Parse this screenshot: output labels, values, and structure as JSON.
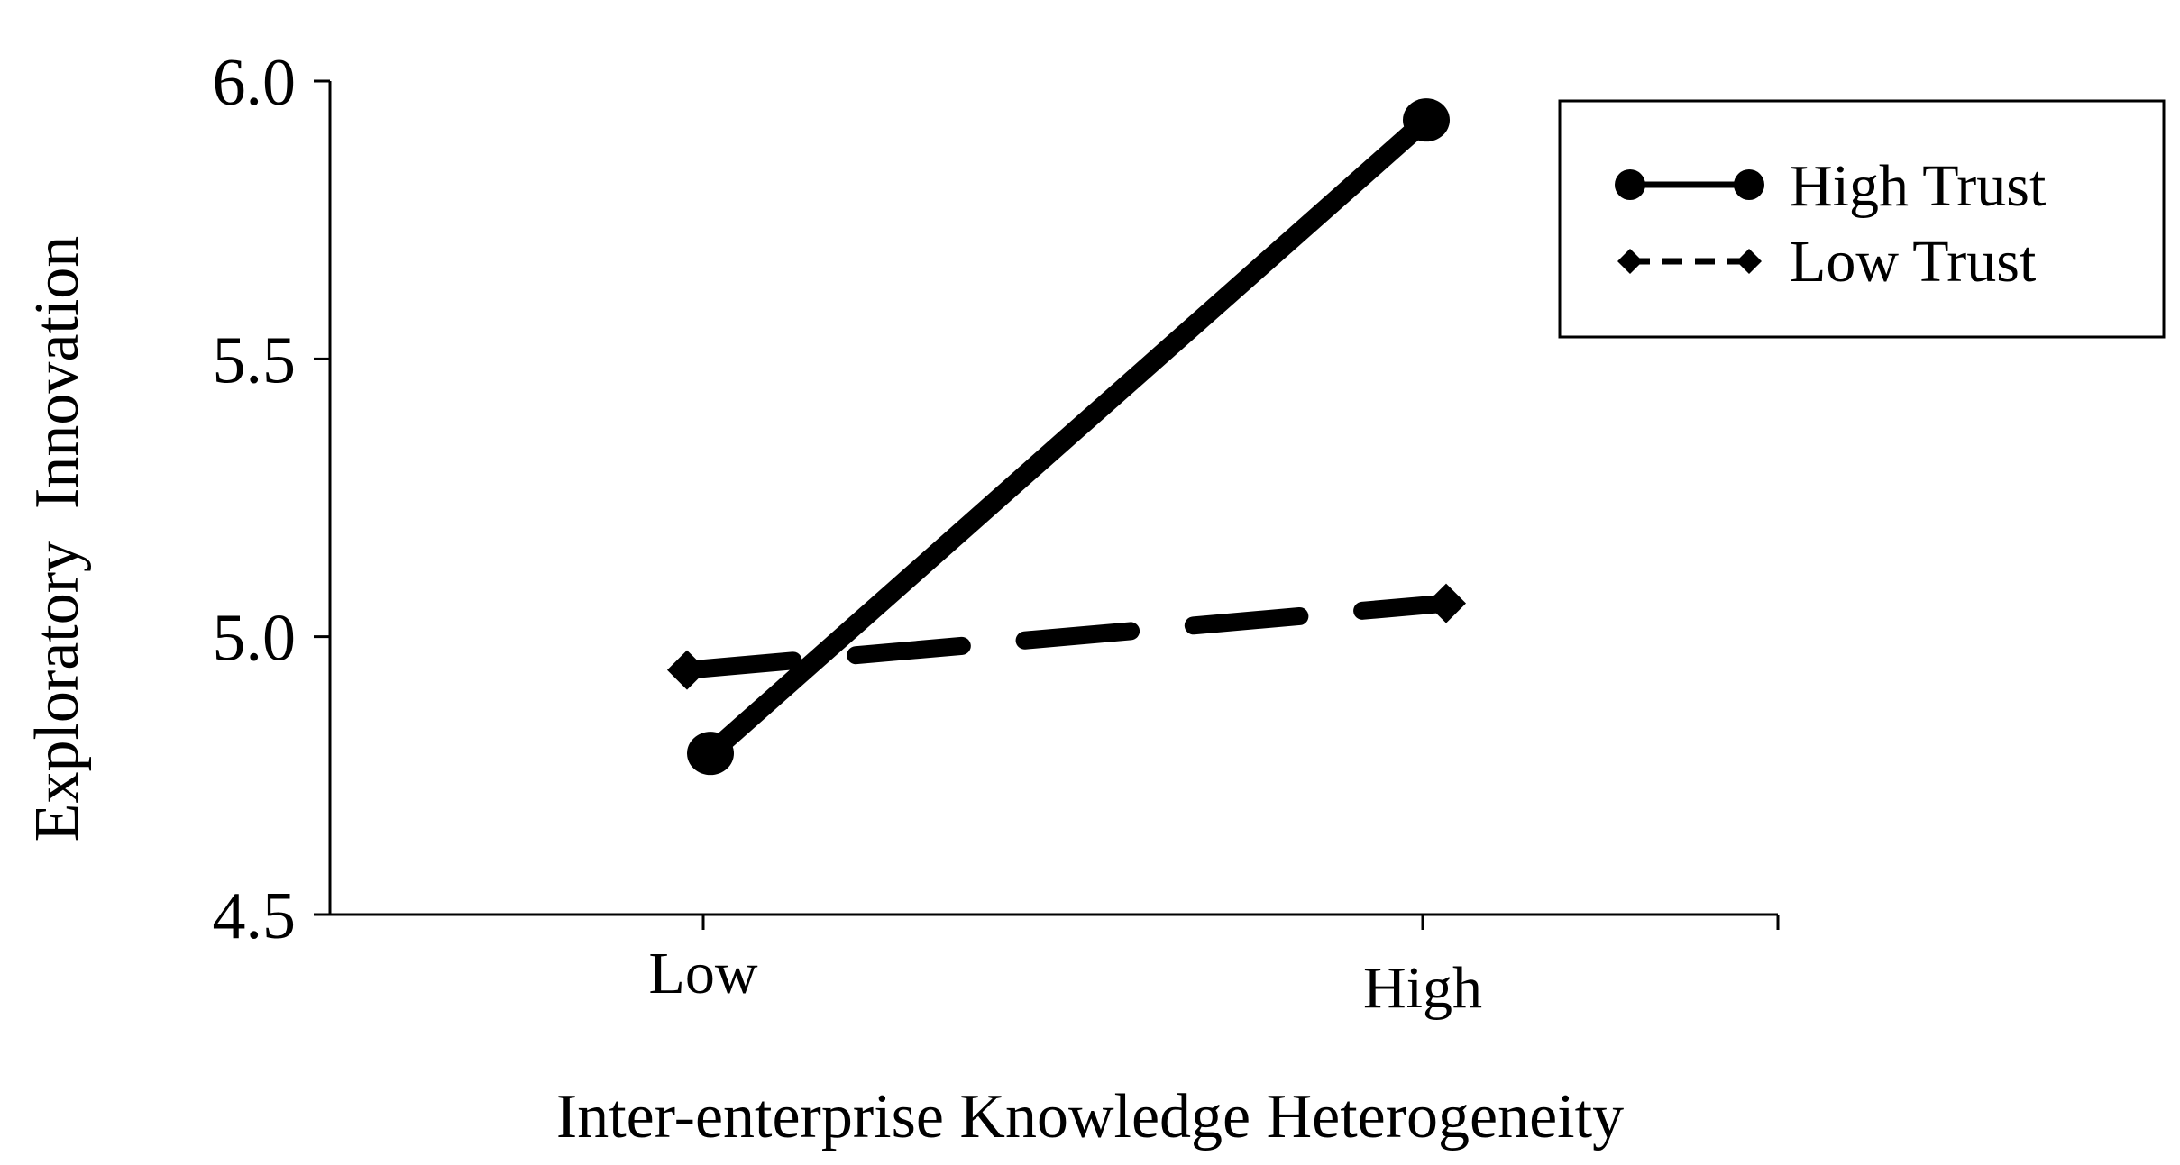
{
  "chart_data": {
    "type": "line",
    "categories": [
      "Low",
      "High"
    ],
    "series": [
      {
        "name": "High Trust",
        "values": [
          4.79,
          5.93
        ],
        "line_style": "solid",
        "marker": "circle",
        "color": "#000000"
      },
      {
        "name": "Low Trust",
        "values": [
          4.94,
          5.06
        ],
        "line_style": "dashed",
        "marker": "diamond",
        "color": "#000000"
      }
    ],
    "xlabel": "Inter-enterprise Knowledge Heterogeneity",
    "ylabel": "Exploratory  Innovation",
    "ylim": [
      4.5,
      6.0
    ],
    "yticks": [
      "4.5",
      "5.0",
      "5.5",
      "6.0"
    ],
    "grid": false,
    "legend_position": "top-right"
  }
}
